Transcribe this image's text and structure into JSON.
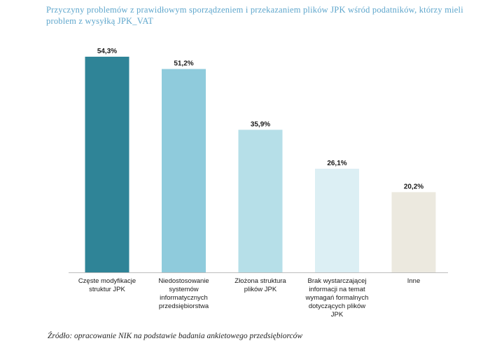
{
  "title": "Przyczyny problemów z prawidłowym sporządzeniem i przekazaniem plików JPK wśród podatników, którzy mieli problem z wysyłką JPK_VAT",
  "source": "Źródło: opracowanie NIK na podstawie badania ankietowego przedsiębiorców",
  "chart_data": {
    "type": "bar",
    "categories": [
      [
        "Częste modyfikacje",
        "struktur JPK"
      ],
      [
        "Niedostosowanie",
        "systemów",
        "informatycznych",
        "przedsiębiorstwa"
      ],
      [
        "Złożona struktura",
        "plików JPK"
      ],
      [
        "Brak wystarczającej",
        "informacji na temat",
        "wymagań formalnych",
        "dotyczących plików",
        "JPK"
      ],
      [
        "Inne"
      ]
    ],
    "values": [
      54.3,
      51.2,
      35.9,
      26.1,
      20.2
    ],
    "value_labels": [
      "54,3%",
      "51,2%",
      "35,9%",
      "26,1%",
      "20,2%"
    ],
    "colors": [
      "#2f8497",
      "#8fcbdc",
      "#b6dfe8",
      "#dceff4",
      "#ece9df"
    ],
    "ylim": [
      0,
      58
    ],
    "grid": false,
    "legend": "none",
    "xlabel": "",
    "ylabel": ""
  }
}
